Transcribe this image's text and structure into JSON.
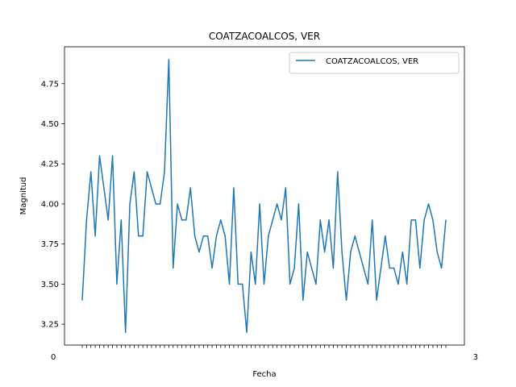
{
  "chart_data": {
    "type": "line",
    "title": "COATZACOALCOS, VER",
    "xlabel": "Fecha",
    "ylabel": "Magnitud",
    "ylim": [
      3.12,
      4.98
    ],
    "yticks": [
      3.25,
      3.5,
      3.75,
      4.0,
      4.25,
      4.5,
      4.75
    ],
    "ytick_labels": [
      "3.25",
      "3.50",
      "3.75",
      "4.00",
      "4.25",
      "4.50",
      "4.75"
    ],
    "x_tick_labels_legible": [
      "0",
      "3"
    ],
    "grid": false,
    "legend_position": "top-right",
    "series": [
      {
        "name": "COATZACOALCOS, VER",
        "color": "#1f77b4",
        "values": [
          3.4,
          3.9,
          4.2,
          3.8,
          4.3,
          4.1,
          3.9,
          4.3,
          3.5,
          3.9,
          3.2,
          4.0,
          4.2,
          3.8,
          3.8,
          4.2,
          4.1,
          4.0,
          4.0,
          4.2,
          4.9,
          3.6,
          4.0,
          3.9,
          3.9,
          4.1,
          3.8,
          3.7,
          3.8,
          3.8,
          3.6,
          3.8,
          3.9,
          3.8,
          3.5,
          4.1,
          3.5,
          3.5,
          3.2,
          3.7,
          3.5,
          4.0,
          3.5,
          3.8,
          3.9,
          4.0,
          3.9,
          4.1,
          3.5,
          3.6,
          4.0,
          3.4,
          3.7,
          3.6,
          3.5,
          3.9,
          3.7,
          3.9,
          3.6,
          4.2,
          3.7,
          3.4,
          3.7,
          3.8,
          3.7,
          3.6,
          3.5,
          3.9,
          3.4,
          3.6,
          3.8,
          3.6,
          3.6,
          3.5,
          3.7,
          3.5,
          3.9,
          3.9,
          3.6,
          3.9,
          4.0,
          3.9,
          3.7,
          3.6,
          3.9
        ]
      }
    ]
  }
}
